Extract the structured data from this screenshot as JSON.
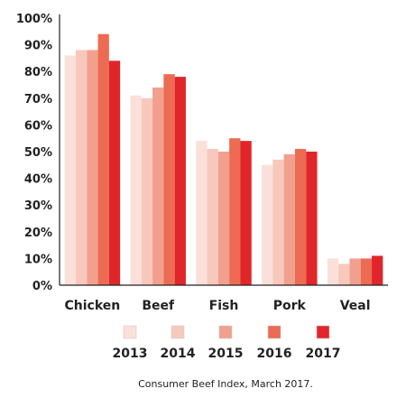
{
  "chart_data": {
    "type": "bar",
    "categories": [
      "Chicken",
      "Beef",
      "Fish",
      "Pork",
      "Veal"
    ],
    "series": [
      {
        "name": "2013",
        "color": "#fbe0da",
        "values": [
          86,
          71,
          54,
          45,
          10
        ]
      },
      {
        "name": "2014",
        "color": "#f8c8bd",
        "values": [
          88,
          70,
          51,
          47,
          8
        ]
      },
      {
        "name": "2015",
        "color": "#f2a08e",
        "values": [
          88,
          74,
          50,
          49,
          10
        ]
      },
      {
        "name": "2016",
        "color": "#ec6b52",
        "values": [
          94,
          79,
          55,
          51,
          10
        ]
      },
      {
        "name": "2017",
        "color": "#e0262a",
        "values": [
          84,
          78,
          54,
          50,
          11
        ]
      }
    ],
    "y_ticks": [
      "0%",
      "10%",
      "20%",
      "30%",
      "40%",
      "50%",
      "60%",
      "70%",
      "80%",
      "90%",
      "100%"
    ],
    "ylim": [
      0,
      100
    ],
    "grid": false,
    "legend_position": "bottom",
    "caption": "Consumer Beef Index, March 2017."
  }
}
